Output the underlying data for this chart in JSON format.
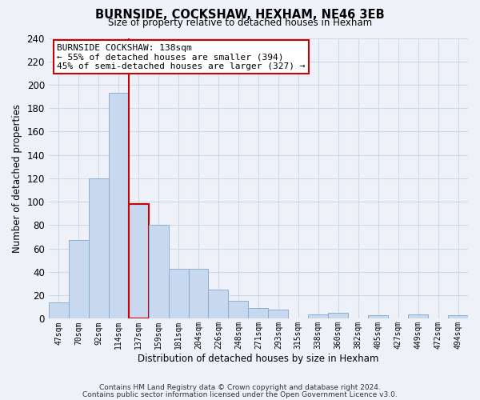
{
  "title": "BURNSIDE, COCKSHAW, HEXHAM, NE46 3EB",
  "subtitle": "Size of property relative to detached houses in Hexham",
  "xlabel": "Distribution of detached houses by size in Hexham",
  "ylabel": "Number of detached properties",
  "categories": [
    "47sqm",
    "70sqm",
    "92sqm",
    "114sqm",
    "137sqm",
    "159sqm",
    "181sqm",
    "204sqm",
    "226sqm",
    "248sqm",
    "271sqm",
    "293sqm",
    "315sqm",
    "338sqm",
    "360sqm",
    "382sqm",
    "405sqm",
    "427sqm",
    "449sqm",
    "472sqm",
    "494sqm"
  ],
  "values": [
    14,
    67,
    120,
    193,
    98,
    80,
    43,
    43,
    25,
    15,
    9,
    8,
    0,
    4,
    5,
    0,
    3,
    0,
    4,
    0,
    3
  ],
  "bar_color": "#c8d8ee",
  "bar_edge_color": "#8ab0d0",
  "highlight_index": 3,
  "highlight_bar_index": 4,
  "highlight_line_color": "#cc0000",
  "annotation_text": "BURNSIDE COCKSHAW: 138sqm\n← 55% of detached houses are smaller (394)\n45% of semi-detached houses are larger (327) →",
  "annotation_box_color": "white",
  "annotation_box_edge_color": "#cc0000",
  "ylim": [
    0,
    240
  ],
  "yticks": [
    0,
    20,
    40,
    60,
    80,
    100,
    120,
    140,
    160,
    180,
    200,
    220,
    240
  ],
  "footer_line1": "Contains HM Land Registry data © Crown copyright and database right 2024.",
  "footer_line2": "Contains public sector information licensed under the Open Government Licence v3.0.",
  "grid_color": "#cdd8e8",
  "background_color": "#eef2f8"
}
